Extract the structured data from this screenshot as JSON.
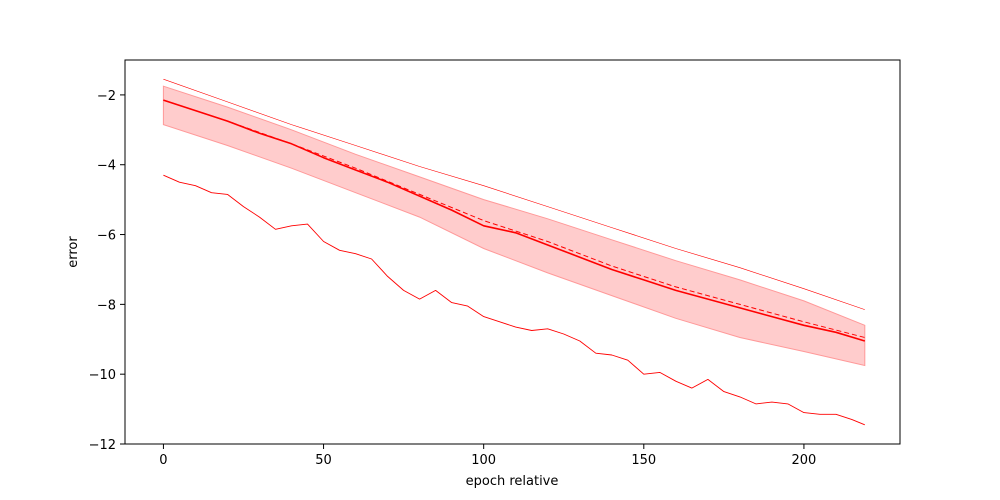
{
  "chart_data": {
    "type": "line",
    "title": "",
    "xlabel": "epoch relative",
    "ylabel": "error",
    "xlim": [
      -12,
      230
    ],
    "ylim": [
      -12,
      -1
    ],
    "xticks": [
      0,
      50,
      100,
      150,
      200
    ],
    "yticks": [
      -2,
      -4,
      -6,
      -8,
      -10,
      -12
    ],
    "grid": false,
    "legend": "none",
    "colors": {
      "line": "#ff0000",
      "band": "#ff9999"
    },
    "series": [
      {
        "role": "upper-bound",
        "style": "thin",
        "x": [
          0,
          20,
          40,
          60,
          80,
          100,
          120,
          140,
          160,
          180,
          200,
          219
        ],
        "y": [
          -1.55,
          -2.2,
          -2.85,
          -3.45,
          -4.05,
          -4.6,
          -5.2,
          -5.8,
          -6.4,
          -6.95,
          -7.55,
          -8.15
        ]
      },
      {
        "role": "mean",
        "style": "solid",
        "x": [
          0,
          10,
          20,
          30,
          40,
          50,
          60,
          70,
          80,
          90,
          100,
          110,
          120,
          130,
          140,
          150,
          160,
          170,
          180,
          190,
          200,
          210,
          219
        ],
        "y": [
          -2.15,
          -2.45,
          -2.75,
          -3.1,
          -3.4,
          -3.8,
          -4.15,
          -4.5,
          -4.9,
          -5.3,
          -5.75,
          -5.95,
          -6.3,
          -6.65,
          -7.0,
          -7.3,
          -7.6,
          -7.85,
          -8.1,
          -8.35,
          -8.6,
          -8.8,
          -9.05
        ]
      },
      {
        "role": "median",
        "style": "dashed",
        "x": [
          0,
          20,
          40,
          60,
          80,
          100,
          120,
          140,
          160,
          180,
          200,
          219
        ],
        "y": [
          -2.15,
          -2.75,
          -3.4,
          -4.1,
          -4.85,
          -5.6,
          -6.2,
          -6.9,
          -7.5,
          -8.0,
          -8.5,
          -8.95
        ]
      },
      {
        "role": "minimum",
        "style": "thin-noisy",
        "x": [
          0,
          5,
          10,
          15,
          20,
          25,
          30,
          35,
          40,
          45,
          50,
          55,
          60,
          65,
          70,
          75,
          80,
          85,
          90,
          95,
          100,
          105,
          110,
          115,
          120,
          125,
          130,
          135,
          140,
          145,
          150,
          155,
          160,
          165,
          170,
          175,
          180,
          185,
          190,
          195,
          200,
          205,
          210,
          215,
          219
        ],
        "y": [
          -4.3,
          -4.5,
          -4.6,
          -4.8,
          -4.85,
          -5.2,
          -5.5,
          -5.85,
          -5.75,
          -5.7,
          -6.2,
          -6.45,
          -6.55,
          -6.7,
          -7.2,
          -7.6,
          -7.85,
          -7.6,
          -7.95,
          -8.05,
          -8.35,
          -8.5,
          -8.65,
          -8.75,
          -8.7,
          -8.85,
          -9.05,
          -9.4,
          -9.45,
          -9.6,
          -10.0,
          -9.95,
          -10.2,
          -10.4,
          -10.15,
          -10.5,
          -10.65,
          -10.85,
          -10.8,
          -10.85,
          -11.1,
          -11.15,
          -11.15,
          -11.3,
          -11.45
        ]
      }
    ],
    "band": {
      "x": [
        0,
        20,
        40,
        60,
        80,
        100,
        120,
        140,
        160,
        180,
        200,
        219
      ],
      "upper": [
        -1.75,
        -2.35,
        -3.0,
        -3.7,
        -4.35,
        -5.0,
        -5.55,
        -6.15,
        -6.75,
        -7.3,
        -7.9,
        -8.6
      ],
      "lower": [
        -2.85,
        -3.45,
        -4.1,
        -4.8,
        -5.5,
        -6.4,
        -7.1,
        -7.75,
        -8.4,
        -8.95,
        -9.35,
        -9.75
      ]
    }
  }
}
